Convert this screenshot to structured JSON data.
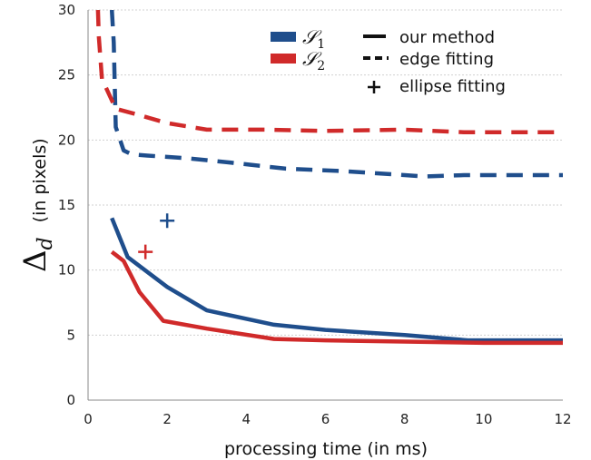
{
  "chart_data": {
    "type": "line",
    "title": "",
    "xlabel": "processing time (in ms)",
    "ylabel": {
      "symbol": "Δ",
      "subscript": "d",
      "unit": "(in pixels)"
    },
    "xlim": [
      0,
      12
    ],
    "ylim": [
      0,
      30
    ],
    "xticks": [
      "0",
      "2",
      "4",
      "6",
      "8",
      "10",
      "12"
    ],
    "yticks": [
      "0",
      "5",
      "10",
      "15",
      "20",
      "25",
      "30"
    ],
    "grid": "horizontal",
    "legend_placement": "top-right",
    "legend": {
      "series": [
        {
          "symbol": "𝒮",
          "subscript": "1",
          "color": "#1f4e8c"
        },
        {
          "symbol": "𝒮",
          "subscript": "2",
          "color": "#d02a2a"
        }
      ],
      "methods": [
        {
          "label": "our method",
          "style": "solid"
        },
        {
          "label": "edge fitting",
          "style": "dashed"
        },
        {
          "label": "ellipse fitting",
          "style": "marker"
        }
      ]
    },
    "series": [
      {
        "group": "S1",
        "method": "our method",
        "color": "#1f4e8c",
        "style": "solid",
        "x": [
          0.6,
          1.0,
          2.0,
          3.0,
          4.7,
          6.0,
          8.0,
          9.6,
          12.0
        ],
        "y": [
          14.0,
          11.0,
          8.7,
          6.9,
          5.8,
          5.4,
          5.0,
          4.6,
          4.6
        ]
      },
      {
        "group": "S2",
        "method": "our method",
        "color": "#d02a2a",
        "style": "solid",
        "x": [
          0.6,
          0.9,
          1.3,
          1.9,
          3.0,
          4.7,
          6.0,
          8.0,
          10.0,
          12.0
        ],
        "y": [
          11.4,
          10.7,
          8.3,
          6.1,
          5.5,
          4.7,
          4.6,
          4.5,
          4.4,
          4.4
        ]
      },
      {
        "group": "S1",
        "method": "edge fitting",
        "color": "#1f4e8c",
        "style": "dashed",
        "x": [
          0.6,
          0.65,
          0.7,
          0.9,
          1.1,
          1.5,
          2.5,
          3.5,
          5.0,
          6.5,
          8.0,
          8.5,
          9.5,
          12.0
        ],
        "y": [
          30,
          27.5,
          21.0,
          19.2,
          18.9,
          18.8,
          18.6,
          18.3,
          17.8,
          17.6,
          17.3,
          17.2,
          17.3,
          17.3
        ]
      },
      {
        "group": "S2",
        "method": "edge fitting",
        "color": "#d02a2a",
        "style": "dashed",
        "x": [
          0.25,
          0.27,
          0.35,
          0.7,
          1.2,
          2.0,
          3.0,
          4.5,
          6.0,
          8.0,
          9.5,
          12.0
        ],
        "y": [
          30,
          28.0,
          24.7,
          22.4,
          22.0,
          21.3,
          20.8,
          20.8,
          20.7,
          20.8,
          20.6,
          20.6
        ]
      }
    ],
    "markers": [
      {
        "group": "S1",
        "method": "ellipse fitting",
        "color": "#1f4e8c",
        "x": 2.0,
        "y": 13.8
      },
      {
        "group": "S2",
        "method": "ellipse fitting",
        "color": "#d02a2a",
        "x": 1.45,
        "y": 11.4
      }
    ]
  }
}
